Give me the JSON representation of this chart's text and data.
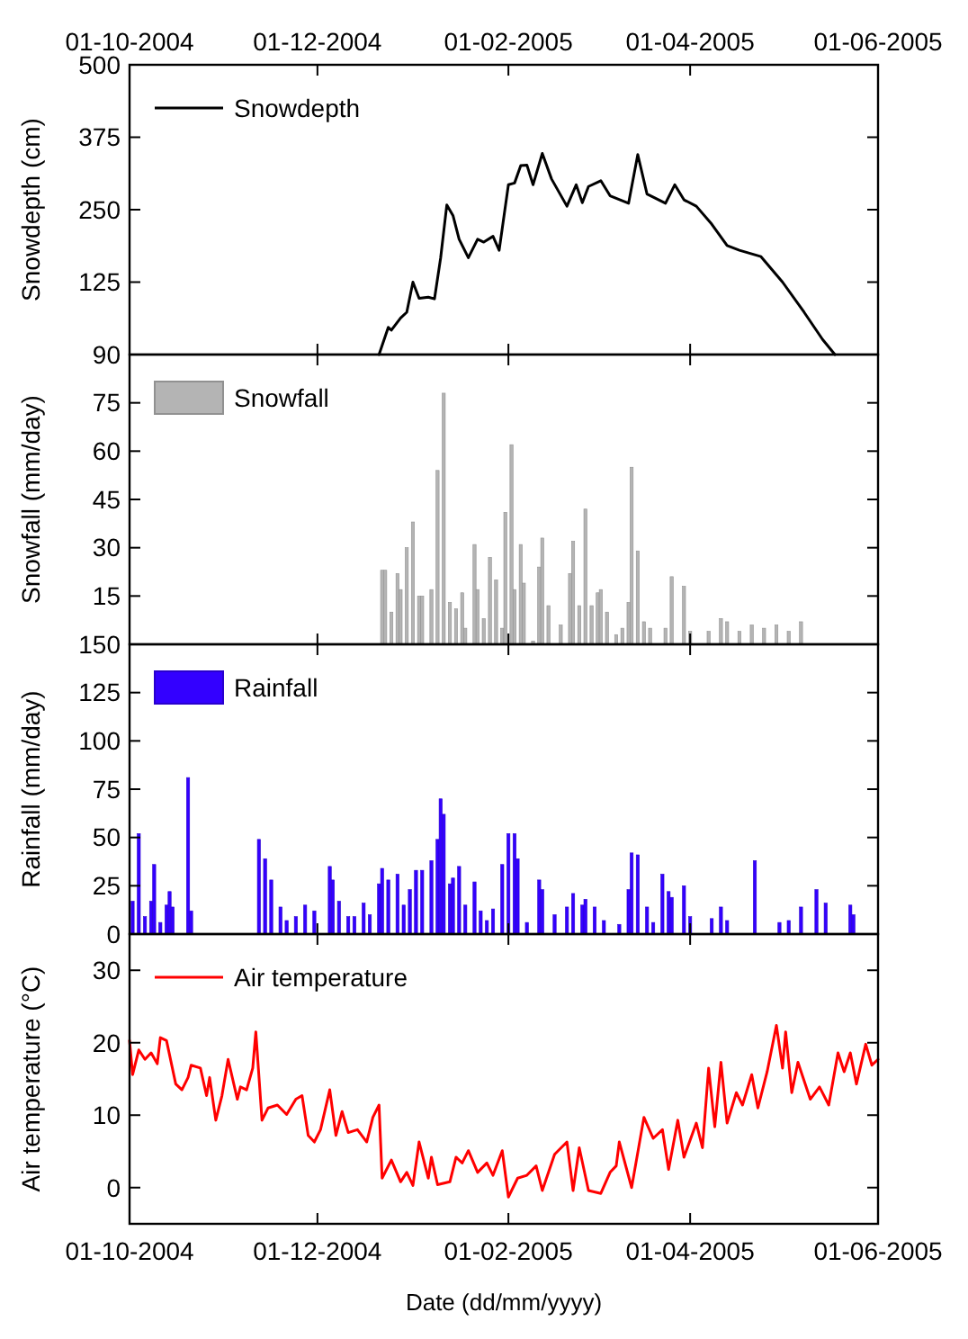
{
  "chart_data": [
    {
      "type": "line",
      "ylabel": "Snowdepth (cm)",
      "xlim": [
        "2004-10-01",
        "2005-06-01"
      ],
      "x2lim": [
        "2004-10-01",
        "2005-06-01"
      ],
      "x2ticks": [
        {
          "value": "2004-10-01",
          "label": "01-10-2004"
        },
        {
          "value": "2004-12-01",
          "label": "01-12-2004"
        },
        {
          "value": "2005-02-01",
          "label": "01-02-2005"
        },
        {
          "value": "2005-04-01",
          "label": "01-04-2005"
        },
        {
          "value": "2005-06-01",
          "label": "01-06-2005"
        }
      ],
      "ylim": [
        0,
        500
      ],
      "yticks": [
        {
          "value": 0,
          "label": null
        },
        125,
        250,
        375,
        500
      ],
      "legend": "top left",
      "x": [
        "2004-12-21",
        "2004-12-24",
        "2004-12-25",
        "2004-12-28",
        "2004-12-30",
        "2005-01-01",
        "2005-01-03",
        "2005-01-06",
        "2005-01-08",
        "2005-01-10",
        "2005-01-12",
        "2005-01-14",
        "2005-01-16",
        "2005-01-19",
        "2005-01-22",
        "2005-01-24",
        "2005-01-27",
        "2005-01-29",
        "2005-02-01",
        "2005-02-03",
        "2005-02-05",
        "2005-02-07",
        "2005-02-09",
        "2005-02-12",
        "2005-02-15",
        "2005-02-20",
        "2005-02-23",
        "2005-02-25",
        "2005-02-27",
        "2005-03-03",
        "2005-03-06",
        "2005-03-12",
        "2005-03-15",
        "2005-03-18",
        "2005-03-24",
        "2005-03-27",
        "2005-03-30",
        "2005-04-03",
        "2005-04-08",
        "2005-04-13",
        "2005-04-17",
        "2005-04-24",
        "2005-05-01",
        "2005-05-08",
        "2005-05-14",
        "2005-05-18"
      ],
      "series": [
        {
          "name": "Snowdepth",
          "color": "#000000",
          "values": [
            0,
            47,
            42,
            63,
            73,
            125,
            97,
            99,
            96,
            167,
            258,
            240,
            199,
            167,
            199,
            194,
            204,
            180,
            293,
            296,
            326,
            327,
            293,
            347,
            303,
            256,
            293,
            262,
            290,
            300,
            274,
            261,
            345,
            277,
            261,
            293,
            267,
            256,
            225,
            188,
            180,
            169,
            125,
            73,
            26,
            0
          ]
        }
      ]
    },
    {
      "type": "bar",
      "ylabel": "Snowfall (mm/day)",
      "xlim": [
        "2004-10-01",
        "2005-06-01"
      ],
      "xticks": [
        "2004-10-01",
        "2004-12-01",
        "2005-02-01",
        "2005-04-01",
        "2005-06-01"
      ],
      "tick_labels": "y",
      "ylim": [
        0,
        90
      ],
      "yticks": [
        {
          "value": 0,
          "label": null
        },
        15,
        30,
        45,
        60,
        75,
        90
      ],
      "legend": "top left",
      "x": [
        "2004-12-22",
        "2004-12-23",
        "2004-12-25",
        "2004-12-27",
        "2004-12-28",
        "2004-12-30",
        "2005-01-01",
        "2005-01-03",
        "2005-01-04",
        "2005-01-07",
        "2005-01-09",
        "2005-01-11",
        "2005-01-13",
        "2005-01-15",
        "2005-01-17",
        "2005-01-18",
        "2005-01-21",
        "2005-01-22",
        "2005-01-24",
        "2005-01-26",
        "2005-01-28",
        "2005-01-30",
        "2005-01-31",
        "2005-02-02",
        "2005-02-03",
        "2005-02-05",
        "2005-02-06",
        "2005-02-09",
        "2005-02-11",
        "2005-02-12",
        "2005-02-14",
        "2005-02-18",
        "2005-02-21",
        "2005-02-22",
        "2005-02-24",
        "2005-02-26",
        "2005-02-28",
        "2005-03-02",
        "2005-03-03",
        "2005-03-05",
        "2005-03-08",
        "2005-03-10",
        "2005-03-12",
        "2005-03-13",
        "2005-03-15",
        "2005-03-17",
        "2005-03-19",
        "2005-03-24",
        "2005-03-26",
        "2005-03-30",
        "2005-04-01",
        "2005-04-07",
        "2005-04-11",
        "2005-04-13",
        "2005-04-17",
        "2005-04-21",
        "2005-04-25",
        "2005-04-29",
        "2005-05-03",
        "2005-05-07"
      ],
      "series": [
        {
          "name": "Snowfall",
          "color": "#b4b4b4",
          "values": [
            23,
            23,
            10,
            22,
            17,
            30,
            38,
            15,
            15,
            17,
            54,
            78,
            13,
            11,
            16,
            5,
            31,
            17,
            8,
            27,
            20,
            5,
            41,
            62,
            17,
            31,
            19,
            1,
            24,
            33,
            12,
            6,
            22,
            32,
            12,
            42,
            12,
            16,
            17,
            10,
            3,
            5,
            13,
            55,
            29,
            7,
            5,
            5,
            21,
            18,
            4,
            4,
            8,
            7,
            4,
            6,
            5,
            6,
            4,
            7
          ]
        }
      ]
    },
    {
      "type": "bar",
      "ylabel": "Rainfall (mm/day)",
      "xlim": [
        "2004-10-01",
        "2005-06-01"
      ],
      "xticks": [
        "2004-10-01",
        "2004-12-01",
        "2005-02-01",
        "2005-04-01",
        "2005-06-01"
      ],
      "tick_labels": "y",
      "ylim": [
        0,
        150
      ],
      "yticks": [
        0,
        25,
        50,
        75,
        100,
        125,
        150
      ],
      "legend": "top left",
      "x": [
        "2004-10-02",
        "2004-10-04",
        "2004-10-06",
        "2004-10-08",
        "2004-10-09",
        "2004-10-11",
        "2004-10-13",
        "2004-10-14",
        "2004-10-15",
        "2004-10-20",
        "2004-10-21",
        "2004-11-12",
        "2004-11-14",
        "2004-11-16",
        "2004-11-19",
        "2004-11-21",
        "2004-11-24",
        "2004-11-27",
        "2004-11-30",
        "2004-12-05",
        "2004-12-06",
        "2004-12-08",
        "2004-12-11",
        "2004-12-13",
        "2004-12-16",
        "2004-12-18",
        "2004-12-21",
        "2004-12-22",
        "2004-12-24",
        "2004-12-27",
        "2004-12-29",
        "2004-12-31",
        "2005-01-02",
        "2005-01-04",
        "2005-01-07",
        "2005-01-09",
        "2005-01-10",
        "2005-01-11",
        "2005-01-13",
        "2005-01-14",
        "2005-01-16",
        "2005-01-18",
        "2005-01-21",
        "2005-01-23",
        "2005-01-25",
        "2005-01-27",
        "2005-01-30",
        "2005-02-01",
        "2005-02-03",
        "2005-02-04",
        "2005-02-07",
        "2005-02-11",
        "2005-02-12",
        "2005-02-16",
        "2005-02-20",
        "2005-02-22",
        "2005-02-25",
        "2005-02-26",
        "2005-03-01",
        "2005-03-04",
        "2005-03-09",
        "2005-03-12",
        "2005-03-13",
        "2005-03-15",
        "2005-03-18",
        "2005-03-20",
        "2005-03-23",
        "2005-03-25",
        "2005-03-26",
        "2005-03-30",
        "2005-04-01",
        "2005-04-08",
        "2005-04-11",
        "2005-04-13",
        "2005-04-22",
        "2005-04-30",
        "2005-05-03",
        "2005-05-07",
        "2005-05-12",
        "2005-05-15",
        "2005-05-23",
        "2005-05-24"
      ],
      "series": [
        {
          "name": "Rainfall",
          "color": "#3300ff",
          "values": [
            17,
            52,
            9,
            17,
            36,
            6,
            15,
            22,
            14,
            81,
            12,
            49,
            39,
            28,
            14,
            7,
            9,
            15,
            12,
            35,
            28,
            17,
            9,
            9,
            16,
            10,
            26,
            34,
            28,
            31,
            15,
            23,
            33,
            33,
            38,
            49,
            70,
            62,
            26,
            29,
            35,
            15,
            27,
            12,
            7,
            13,
            36,
            52,
            52,
            39,
            6,
            28,
            23,
            10,
            14,
            21,
            15,
            18,
            14,
            7,
            5,
            23,
            42,
            41,
            14,
            6,
            31,
            22,
            19,
            25,
            9,
            8,
            14,
            7,
            38,
            6,
            7,
            14,
            23,
            16,
            15,
            10
          ]
        }
      ]
    },
    {
      "type": "line",
      "ylabel": "Air temperature (°C)",
      "xlabel": "Date (dd/mm/yyyy)",
      "xlim": [
        "2004-10-01",
        "2005-06-01"
      ],
      "xticks": [
        {
          "value": "2004-10-01",
          "label": "01-10-2004"
        },
        {
          "value": "2004-12-01",
          "label": "01-12-2004"
        },
        {
          "value": "2005-02-01",
          "label": "01-02-2005"
        },
        {
          "value": "2005-04-01",
          "label": "01-04-2005"
        },
        {
          "value": "2005-06-01",
          "label": "01-06-2005"
        }
      ],
      "ylim": [
        -5,
        35
      ],
      "yticks": [
        0,
        10,
        20,
        30
      ],
      "legend": "top left",
      "x": [
        "2004-10-01",
        "2004-10-02",
        "2004-10-04",
        "2004-10-06",
        "2004-10-08",
        "2004-10-10",
        "2004-10-11",
        "2004-10-13",
        "2004-10-16",
        "2004-10-18",
        "2004-10-20",
        "2004-10-21",
        "2004-10-24",
        "2004-10-26",
        "2004-10-27",
        "2004-10-29",
        "2004-10-31",
        "2004-11-02",
        "2004-11-05",
        "2004-11-06",
        "2004-11-08",
        "2004-11-10",
        "2004-11-11",
        "2004-11-13",
        "2004-11-15",
        "2004-11-18",
        "2004-11-21",
        "2004-11-24",
        "2004-11-26",
        "2004-11-28",
        "2004-11-30",
        "2004-12-02",
        "2004-12-05",
        "2004-12-07",
        "2004-12-09",
        "2004-12-11",
        "2004-12-14",
        "2004-12-17",
        "2004-12-19",
        "2004-12-21",
        "2004-12-22",
        "2004-12-25",
        "2004-12-28",
        "2004-12-30",
        "2005-01-01",
        "2005-01-03",
        "2005-01-06",
        "2005-01-07",
        "2005-01-09",
        "2005-01-13",
        "2005-01-15",
        "2005-01-17",
        "2005-01-19",
        "2005-01-22",
        "2005-01-25",
        "2005-01-27",
        "2005-01-30",
        "2005-02-01",
        "2005-02-04",
        "2005-02-07",
        "2005-02-10",
        "2005-02-12",
        "2005-02-16",
        "2005-02-20",
        "2005-02-22",
        "2005-02-24",
        "2005-02-27",
        "2005-03-03",
        "2005-03-06",
        "2005-03-08",
        "2005-03-09",
        "2005-03-13",
        "2005-03-17",
        "2005-03-20",
        "2005-03-23",
        "2005-03-25",
        "2005-03-28",
        "2005-03-30",
        "2005-04-03",
        "2005-04-05",
        "2005-04-07",
        "2005-04-09",
        "2005-04-11",
        "2005-04-13",
        "2005-04-16",
        "2005-04-18",
        "2005-04-21",
        "2005-04-23",
        "2005-04-26",
        "2005-04-29",
        "2005-05-01",
        "2005-05-02",
        "2005-05-04",
        "2005-05-06",
        "2005-05-10",
        "2005-05-13",
        "2005-05-16",
        "2005-05-19",
        "2005-05-21",
        "2005-05-23",
        "2005-05-25",
        "2005-05-28",
        "2005-05-30",
        "2005-06-01"
      ],
      "series": [
        {
          "name": "Air temperature",
          "color": "#ff0000",
          "values": [
            20.3,
            15.6,
            19,
            17.7,
            18.6,
            17.1,
            20.7,
            20.3,
            14.3,
            13.5,
            15.2,
            16.9,
            16.5,
            12.7,
            15.2,
            9.3,
            12.7,
            17.7,
            12.2,
            13.9,
            13.5,
            16.5,
            21.5,
            9.3,
            11,
            11.4,
            10.1,
            12.2,
            12.7,
            7.2,
            6.3,
            8,
            13.5,
            7.2,
            10.5,
            7.6,
            8,
            6.3,
            9.7,
            11.4,
            1.3,
            3.8,
            0.8,
            2.1,
            0.3,
            6.3,
            1.3,
            4.2,
            0.4,
            0.8,
            4.2,
            3.4,
            5.1,
            2.1,
            3.4,
            1.7,
            5.1,
            -1.3,
            1.3,
            1.7,
            3,
            -0.4,
            4.6,
            6.3,
            -0.4,
            5.5,
            -0.4,
            -0.8,
            2.1,
            3,
            6.3,
            0,
            9.7,
            6.8,
            8,
            2.5,
            9.3,
            4.2,
            8.9,
            5.5,
            16.5,
            8.4,
            17.3,
            8.9,
            13.1,
            11.4,
            15.6,
            11,
            16,
            22.4,
            16.5,
            21.5,
            13.1,
            17.3,
            12.2,
            13.9,
            11.4,
            18.6,
            16,
            18.6,
            14.3,
            19.8,
            16.9,
            17.7
          ]
        }
      ]
    }
  ]
}
